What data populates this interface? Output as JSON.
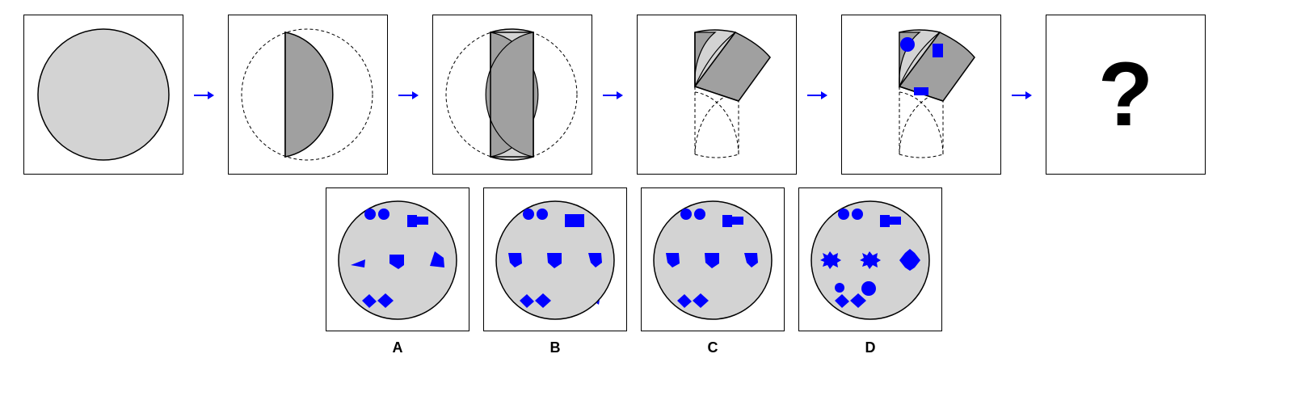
{
  "colors": {
    "paper_light": "#d3d3d3",
    "paper_dark": "#a0a0a0",
    "punch": "#0000ff",
    "arrow": "#0000ff",
    "outline": "#000000"
  },
  "sequence": {
    "steps": [
      {
        "stage": "full-circle"
      },
      {
        "stage": "fold-left-edge-right"
      },
      {
        "stage": "fold-right-edge-left"
      },
      {
        "stage": "fold-bottom-up-diagonal"
      },
      {
        "stage": "punch-holes"
      }
    ],
    "question_mark": "?"
  },
  "options": [
    {
      "label": "A"
    },
    {
      "label": "B"
    },
    {
      "label": "C"
    },
    {
      "label": "D"
    }
  ]
}
